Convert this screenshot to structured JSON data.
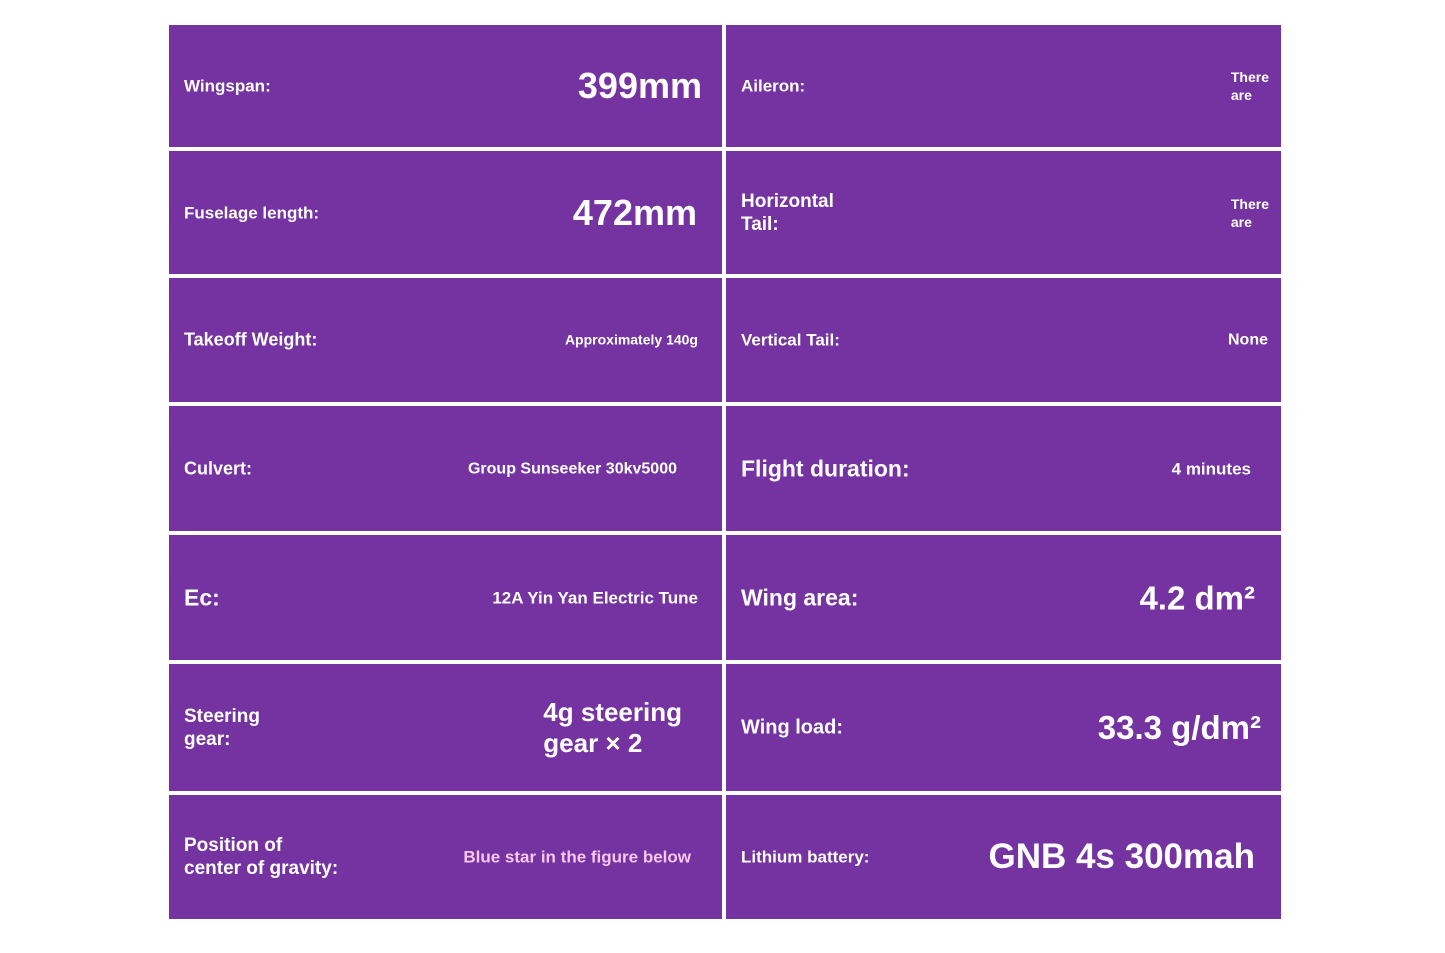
{
  "background_color": "#7433a0",
  "specs": [
    {
      "label": "Wingspan:",
      "value": "399mm"
    },
    {
      "label": "Aileron:",
      "value": "There\nare"
    },
    {
      "label": "Fuselage length:",
      "value": "472mm"
    },
    {
      "label": "Horizontal\nTail:",
      "value": "There\nare"
    },
    {
      "label": "Takeoff Weight:",
      "value": "Approximately 140g"
    },
    {
      "label": "Vertical Tail:",
      "value": "None"
    },
    {
      "label": "Culvert:",
      "value": "Group Sunseeker 30kv5000"
    },
    {
      "label": "Flight duration:",
      "value": "4 minutes"
    },
    {
      "label": "Ec:",
      "value": "12A Yin Yan Electric Tune"
    },
    {
      "label": "Wing area:",
      "value": "4.2 dm²"
    },
    {
      "label": "Steering\ngear:",
      "value": "4g steering\ngear × 2"
    },
    {
      "label": "Wing load:",
      "value": "33.3 g/dm²"
    },
    {
      "label": "Position of\ncenter of gravity:",
      "value": "Blue star in the figure below"
    },
    {
      "label": "Lithium battery:",
      "value": "GNB 4s 300mah"
    }
  ]
}
